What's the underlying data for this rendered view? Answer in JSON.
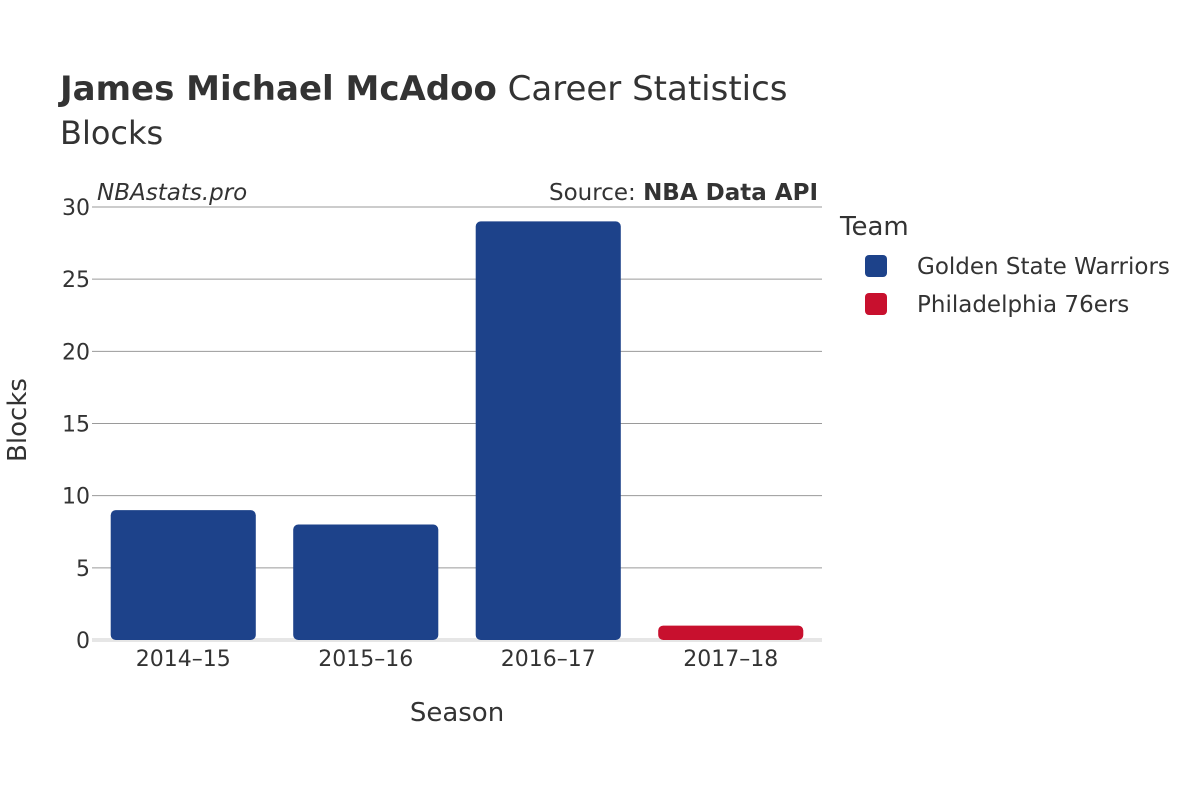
{
  "header": {
    "title_name": "James Michael McAdoo",
    "title_rest": " Career Statistics",
    "subtitle": "Blocks"
  },
  "watermark": "NBAstats.pro",
  "source": {
    "prefix": "Source: ",
    "name": "NBA Data API"
  },
  "legend": {
    "title": "Team",
    "items": [
      {
        "label": "Golden State Warriors",
        "color": "#1d428a"
      },
      {
        "label": "Philadelphia 76ers",
        "color": "#c8102e"
      }
    ]
  },
  "chart_data": {
    "type": "bar",
    "xlabel": "Season",
    "ylabel": "Blocks",
    "categories": [
      "2014–15",
      "2015–16",
      "2016–17",
      "2017–18"
    ],
    "values": [
      9,
      8,
      29,
      1
    ],
    "bar_teams": [
      "Golden State Warriors",
      "Golden State Warriors",
      "Golden State Warriors",
      "Philadelphia 76ers"
    ],
    "ylim": [
      0,
      30
    ],
    "yticks": [
      0,
      5,
      10,
      15,
      20,
      25,
      30
    ],
    "grid": true,
    "legend_position": "right"
  }
}
